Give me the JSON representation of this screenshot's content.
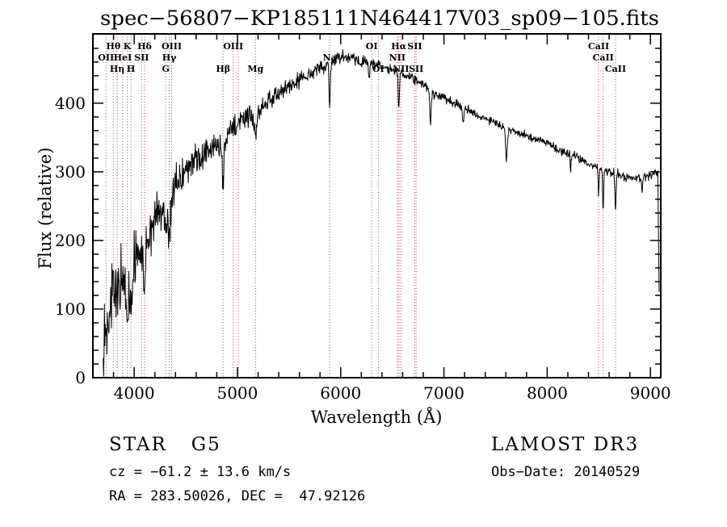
{
  "title": "spec−56807−KP185111N464417V03_sp09−105.fits",
  "footer": {
    "object_class": "STAR",
    "subclass": "G5",
    "survey": "LAMOST DR3",
    "cz": "cz = −61.2 ± 13.6 km/s",
    "obs_date": "Obs−Date: 20140529",
    "coords": "RA = 283.50026, DEC =  47.92126"
  },
  "chart_data": {
    "type": "line",
    "title": "spec−56807−KP185111N464417V03_sp09−105.fits",
    "xlabel": "Wavelength (Å)",
    "ylabel": "Flux (relative)",
    "xlim": [
      3600,
      9100
    ],
    "ylim": [
      0,
      501
    ],
    "xticks": [
      4000,
      5000,
      6000,
      7000,
      8000,
      9000
    ],
    "yticks": [
      0,
      100,
      200,
      300,
      400
    ],
    "x_minor_step": 200,
    "y_minor_step": 20,
    "grid": false,
    "legend": "none",
    "background": "#ffffff",
    "line_color": "#000000",
    "marker_color": "#aa4444",
    "marker_label_color": "#151515",
    "frame_color": "#000000",
    "wavelength_range": [
      3700,
      9085
    ],
    "sample_step": 4,
    "noise_seed": 13,
    "continuum": [
      [
        3700,
        55
      ],
      [
        3720,
        75
      ],
      [
        3750,
        100
      ],
      [
        3780,
        118
      ],
      [
        3810,
        128
      ],
      [
        3840,
        126
      ],
      [
        3870,
        138
      ],
      [
        3900,
        134
      ],
      [
        3930,
        122
      ],
      [
        3960,
        132
      ],
      [
        4000,
        168
      ],
      [
        4050,
        182
      ],
      [
        4100,
        178
      ],
      [
        4150,
        212
      ],
      [
        4200,
        232
      ],
      [
        4250,
        244
      ],
      [
        4300,
        242
      ],
      [
        4350,
        252
      ],
      [
        4400,
        282
      ],
      [
        4450,
        292
      ],
      [
        4500,
        300
      ],
      [
        4550,
        308
      ],
      [
        4600,
        318
      ],
      [
        4650,
        320
      ],
      [
        4700,
        328
      ],
      [
        4750,
        334
      ],
      [
        4800,
        340
      ],
      [
        4850,
        334
      ],
      [
        4900,
        352
      ],
      [
        4950,
        362
      ],
      [
        5000,
        372
      ],
      [
        5050,
        378
      ],
      [
        5100,
        384
      ],
      [
        5150,
        378
      ],
      [
        5200,
        388
      ],
      [
        5250,
        398
      ],
      [
        5300,
        404
      ],
      [
        5350,
        410
      ],
      [
        5400,
        414
      ],
      [
        5450,
        419
      ],
      [
        5500,
        424
      ],
      [
        5550,
        429
      ],
      [
        5600,
        434
      ],
      [
        5650,
        439
      ],
      [
        5700,
        444
      ],
      [
        5750,
        449
      ],
      [
        5800,
        453
      ],
      [
        5850,
        455
      ],
      [
        5900,
        459
      ],
      [
        5950,
        464
      ],
      [
        6000,
        468
      ],
      [
        6100,
        465
      ],
      [
        6200,
        461
      ],
      [
        6300,
        457
      ],
      [
        6400,
        453
      ],
      [
        6500,
        449
      ],
      [
        6600,
        443
      ],
      [
        6700,
        437
      ],
      [
        6800,
        428
      ],
      [
        6900,
        415
      ],
      [
        7000,
        408
      ],
      [
        7100,
        400
      ],
      [
        7200,
        392
      ],
      [
        7300,
        385
      ],
      [
        7400,
        378
      ],
      [
        7500,
        372
      ],
      [
        7600,
        362
      ],
      [
        7700,
        358
      ],
      [
        7800,
        352
      ],
      [
        7900,
        347
      ],
      [
        8000,
        342
      ],
      [
        8100,
        333
      ],
      [
        8200,
        327
      ],
      [
        8300,
        319
      ],
      [
        8400,
        313
      ],
      [
        8500,
        306
      ],
      [
        8600,
        300
      ],
      [
        8700,
        295
      ],
      [
        8800,
        291
      ],
      [
        8900,
        290
      ],
      [
        9000,
        296
      ],
      [
        9050,
        300
      ],
      [
        9072,
        300
      ],
      [
        9085,
        108
      ]
    ],
    "absorption_lines": [
      {
        "wavelength": 3933,
        "depth": 55,
        "sigma": 7
      },
      {
        "wavelength": 3968,
        "depth": 48,
        "sigma": 7
      },
      {
        "wavelength": 4101,
        "depth": 52,
        "sigma": 7
      },
      {
        "wavelength": 4305,
        "depth": 32,
        "sigma": 9
      },
      {
        "wavelength": 4340,
        "depth": 48,
        "sigma": 7
      },
      {
        "wavelength": 4861,
        "depth": 55,
        "sigma": 7
      },
      {
        "wavelength": 5175,
        "depth": 32,
        "sigma": 10
      },
      {
        "wavelength": 5893,
        "depth": 68,
        "sigma": 6
      },
      {
        "wavelength": 6276,
        "depth": 22,
        "sigma": 5
      },
      {
        "wavelength": 6563,
        "depth": 55,
        "sigma": 6
      },
      {
        "wavelength": 6870,
        "depth": 48,
        "sigma": 7
      },
      {
        "wavelength": 7186,
        "depth": 22,
        "sigma": 6
      },
      {
        "wavelength": 7605,
        "depth": 45,
        "sigma": 8
      },
      {
        "wavelength": 8227,
        "depth": 25,
        "sigma": 4
      },
      {
        "wavelength": 8498,
        "depth": 38,
        "sigma": 5
      },
      {
        "wavelength": 8542,
        "depth": 60,
        "sigma": 5
      },
      {
        "wavelength": 8662,
        "depth": 55,
        "sigma": 5
      },
      {
        "wavelength": 8920,
        "depth": 25,
        "sigma": 4
      }
    ],
    "noise_profile": [
      [
        3700,
        52
      ],
      [
        3800,
        46
      ],
      [
        3900,
        40
      ],
      [
        4000,
        36
      ],
      [
        4150,
        32
      ],
      [
        4300,
        28
      ],
      [
        4600,
        22
      ],
      [
        5000,
        16
      ],
      [
        5400,
        12
      ],
      [
        5800,
        10
      ],
      [
        6200,
        8
      ],
      [
        6600,
        7
      ],
      [
        7200,
        6
      ],
      [
        8000,
        6
      ],
      [
        8600,
        7
      ],
      [
        9000,
        8
      ]
    ],
    "line_markers": [
      {
        "wavelength": 3727,
        "label": "OII",
        "row": 1
      },
      {
        "wavelength": 3798,
        "label": "Hθ",
        "row": 0
      },
      {
        "wavelength": 3835,
        "label": "Hη",
        "row": 2
      },
      {
        "wavelength": 3889,
        "label": "HeI",
        "row": 1
      },
      {
        "wavelength": 3933,
        "label": "K",
        "row": 0
      },
      {
        "wavelength": 3968,
        "label": "H",
        "row": 2
      },
      {
        "wavelength": 4072,
        "label": "SII",
        "row": 1
      },
      {
        "wavelength": 4101,
        "label": "Hδ",
        "row": 0
      },
      {
        "wavelength": 4305,
        "label": "G",
        "row": 2
      },
      {
        "wavelength": 4340,
        "label": "Hγ",
        "row": 1
      },
      {
        "wavelength": 4363,
        "label": "OIII",
        "row": 0
      },
      {
        "wavelength": 4861,
        "label": "Hβ",
        "row": 2
      },
      {
        "wavelength": 4959,
        "label": "OIII",
        "row": 0
      },
      {
        "wavelength": 5007,
        "label": "",
        "row": 0
      },
      {
        "wavelength": 5175,
        "label": "Mg",
        "row": 2
      },
      {
        "wavelength": 5893,
        "label": "Na",
        "row": 1
      },
      {
        "wavelength": 6300,
        "label": "OI",
        "row": 0
      },
      {
        "wavelength": 6364,
        "label": "OI",
        "row": 2
      },
      {
        "wavelength": 6548,
        "label": "NII",
        "row": 1
      },
      {
        "wavelength": 6563,
        "label": "Hα",
        "row": 0
      },
      {
        "wavelength": 6583,
        "label": "NII",
        "row": 2
      },
      {
        "wavelength": 6717,
        "label": "SII",
        "row": 0
      },
      {
        "wavelength": 6731,
        "label": "SII",
        "row": 2
      },
      {
        "wavelength": 8498,
        "label": "CaII",
        "row": 0
      },
      {
        "wavelength": 8542,
        "label": "CaII",
        "row": 1
      },
      {
        "wavelength": 8662,
        "label": "CaII",
        "row": 2
      }
    ]
  }
}
